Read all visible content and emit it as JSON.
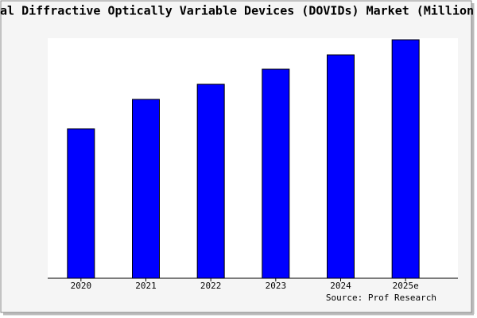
{
  "chart_data": {
    "type": "bar",
    "title": "al Diffractive Optically Variable Devices (DOVIDs) Market (Million",
    "categories": [
      "2020",
      "2021",
      "2022",
      "2023",
      "2024",
      "2025e"
    ],
    "values": [
      188,
      225,
      244,
      263,
      281,
      300
    ],
    "color": "#0000ff",
    "ylim": [
      0,
      300
    ],
    "source": "Source: Prof Research"
  }
}
